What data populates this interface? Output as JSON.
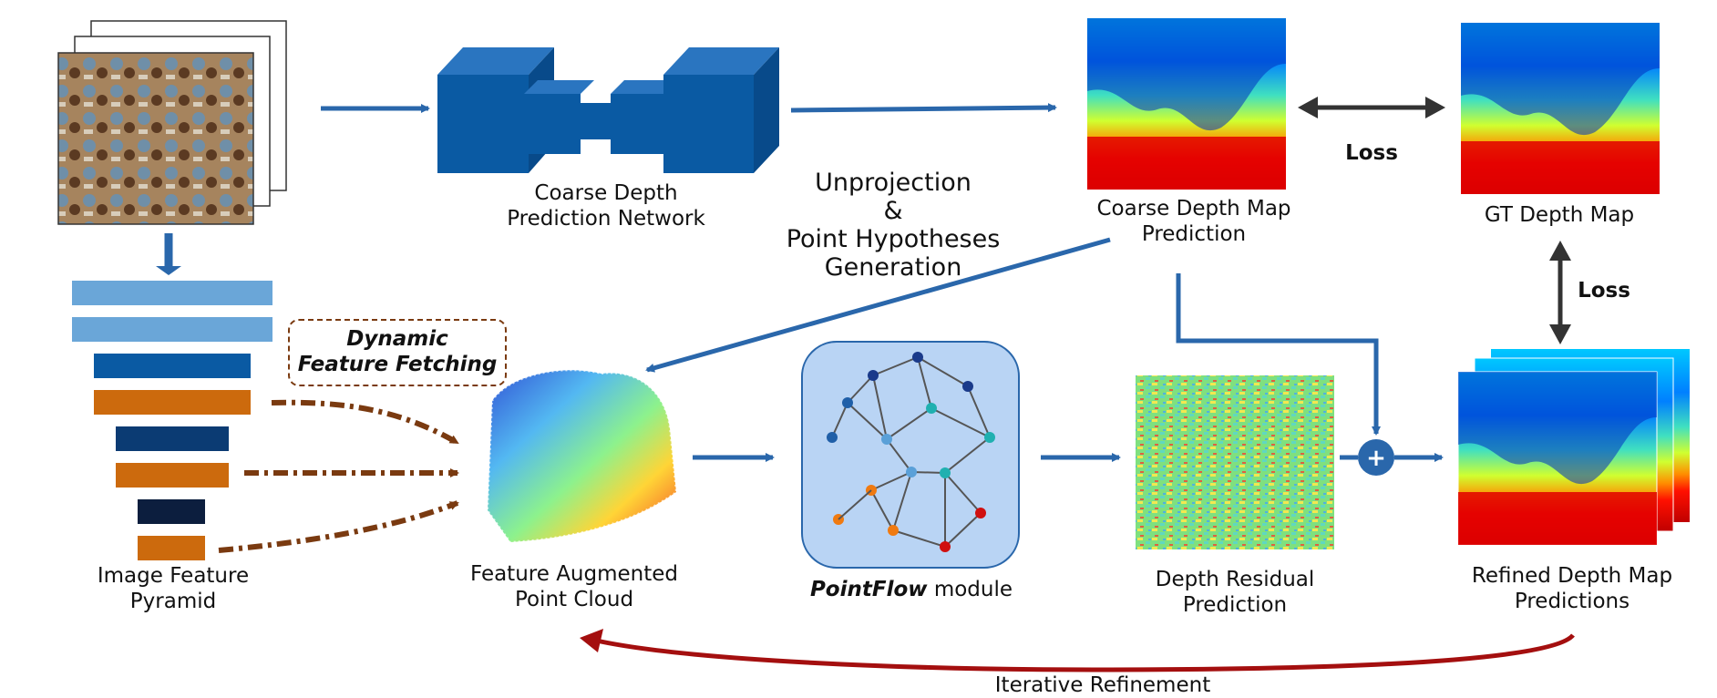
{
  "labels": {
    "coarse_net": [
      "Coarse Depth",
      "Prediction Network"
    ],
    "unprojection": [
      "Unprojection",
      "&",
      "Point Hypotheses",
      "Generation"
    ],
    "coarse_map": [
      "Coarse Depth Map",
      "Prediction"
    ],
    "gt_map": "GT Depth Map",
    "loss_top": "Loss",
    "loss_right": "Loss",
    "pyramid": [
      "Image Feature",
      "Pyramid"
    ],
    "dynamic": [
      "Dynamic",
      "Feature Fetching"
    ],
    "point_cloud": [
      "Feature Augmented",
      "Point Cloud"
    ],
    "pointflow_bold": "PointFlow",
    "pointflow_rest": " module",
    "residual": [
      "Depth Residual",
      "Prediction"
    ],
    "refined": [
      "Refined Depth Map",
      "Predictions"
    ],
    "iterative": "Iterative Refinement",
    "plus": "+"
  },
  "colors": {
    "flow_arrow": "#2a67ab",
    "network_blue": "#0a5aa3",
    "pyramid_light": "#6aa6d8",
    "pyramid_mid": "#0a5aa3",
    "pyramid_dark": "#0b3b73",
    "pyramid_darkest": "#0c1e3e",
    "pyramid_orange": "#cc6a0d",
    "dashed_brown": "#7a3a10",
    "loss_arrow": "#333333",
    "iter_arrow": "#a40f0f",
    "pointflow_bg": "#b9d4f4"
  }
}
